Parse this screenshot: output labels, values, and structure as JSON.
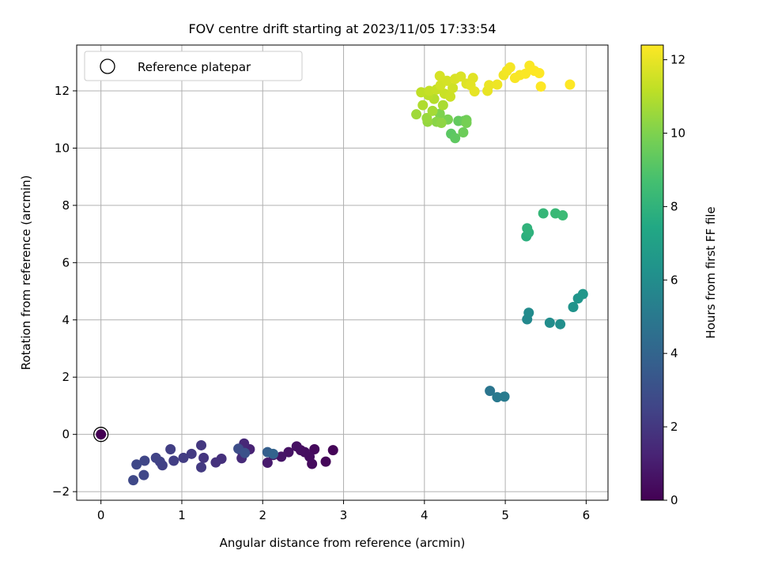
{
  "chart_data": {
    "type": "scatter",
    "title": "FOV centre drift starting at 2023/11/05 17:33:54",
    "xlabel": "Angular distance from reference (arcmin)",
    "ylabel": "Rotation from reference (arcmin)",
    "xlim": [
      -0.3,
      6.27
    ],
    "ylim": [
      -2.3,
      13.6
    ],
    "xticks": [
      0,
      1,
      2,
      3,
      4,
      5,
      6
    ],
    "yticks": [
      -2,
      0,
      2,
      4,
      6,
      8,
      10,
      12
    ],
    "grid": true,
    "legend": {
      "placement": "top-left",
      "entries": [
        "Reference platepar"
      ]
    },
    "colorbar": {
      "label": "Hours from first FF file",
      "range": [
        0,
        12.4
      ],
      "ticks": [
        0,
        2,
        4,
        6,
        8,
        10,
        12
      ],
      "colormap": "viridis"
    },
    "reference_point": {
      "x": 0,
      "y": 0,
      "c": 0
    },
    "points": [
      {
        "x": 2.87,
        "y": -0.55,
        "c": 0.1
      },
      {
        "x": 2.78,
        "y": -0.95,
        "c": 0.2
      },
      {
        "x": 2.64,
        "y": -0.52,
        "c": 0.3
      },
      {
        "x": 2.61,
        "y": -1.03,
        "c": 0.35
      },
      {
        "x": 2.58,
        "y": -0.78,
        "c": 0.4
      },
      {
        "x": 2.52,
        "y": -0.62,
        "c": 0.45
      },
      {
        "x": 2.47,
        "y": -0.55,
        "c": 0.5
      },
      {
        "x": 2.42,
        "y": -0.42,
        "c": 0.55
      },
      {
        "x": 2.32,
        "y": -0.62,
        "c": 0.6
      },
      {
        "x": 2.23,
        "y": -0.78,
        "c": 0.7
      },
      {
        "x": 2.13,
        "y": -0.72,
        "c": 0.8
      },
      {
        "x": 2.06,
        "y": -0.99,
        "c": 0.9
      },
      {
        "x": 1.84,
        "y": -0.52,
        "c": 1.2
      },
      {
        "x": 1.77,
        "y": -0.32,
        "c": 1.4
      },
      {
        "x": 1.74,
        "y": -0.83,
        "c": 1.5
      },
      {
        "x": 1.73,
        "y": -0.55,
        "c": 1.6
      },
      {
        "x": 1.49,
        "y": -0.85,
        "c": 1.7
      },
      {
        "x": 1.42,
        "y": -0.98,
        "c": 1.8
      },
      {
        "x": 1.27,
        "y": -0.82,
        "c": 1.9
      },
      {
        "x": 1.24,
        "y": -0.38,
        "c": 2.0
      },
      {
        "x": 1.24,
        "y": -1.15,
        "c": 2.1
      },
      {
        "x": 1.12,
        "y": -0.68,
        "c": 2.15
      },
      {
        "x": 1.02,
        "y": -0.82,
        "c": 2.2
      },
      {
        "x": 0.9,
        "y": -0.92,
        "c": 2.25
      },
      {
        "x": 0.86,
        "y": -0.52,
        "c": 2.3
      },
      {
        "x": 0.76,
        "y": -1.08,
        "c": 2.35
      },
      {
        "x": 0.73,
        "y": -0.95,
        "c": 2.4
      },
      {
        "x": 0.68,
        "y": -0.82,
        "c": 2.5
      },
      {
        "x": 0.54,
        "y": -0.92,
        "c": 2.55
      },
      {
        "x": 0.53,
        "y": -1.42,
        "c": 2.6
      },
      {
        "x": 0.44,
        "y": -1.05,
        "c": 2.65
      },
      {
        "x": 0.4,
        "y": -1.6,
        "c": 2.7
      },
      {
        "x": 1.7,
        "y": -0.5,
        "c": 2.9
      },
      {
        "x": 1.78,
        "y": -0.65,
        "c": 3.1
      },
      {
        "x": 2.06,
        "y": -0.62,
        "c": 3.7
      },
      {
        "x": 2.13,
        "y": -0.68,
        "c": 3.9
      },
      {
        "x": 4.81,
        "y": 1.52,
        "c": 4.8
      },
      {
        "x": 4.9,
        "y": 1.3,
        "c": 5.0
      },
      {
        "x": 4.99,
        "y": 1.32,
        "c": 5.1
      },
      {
        "x": 5.27,
        "y": 4.02,
        "c": 5.8
      },
      {
        "x": 5.29,
        "y": 4.25,
        "c": 5.9
      },
      {
        "x": 5.55,
        "y": 3.9,
        "c": 6.0
      },
      {
        "x": 5.68,
        "y": 3.85,
        "c": 6.1
      },
      {
        "x": 5.84,
        "y": 4.45,
        "c": 6.3
      },
      {
        "x": 5.9,
        "y": 4.75,
        "c": 6.4
      },
      {
        "x": 5.96,
        "y": 4.9,
        "c": 6.5
      },
      {
        "x": 5.26,
        "y": 6.92,
        "c": 7.8
      },
      {
        "x": 5.29,
        "y": 7.05,
        "c": 7.9
      },
      {
        "x": 5.27,
        "y": 7.2,
        "c": 8.0
      },
      {
        "x": 5.47,
        "y": 7.72,
        "c": 8.2
      },
      {
        "x": 5.62,
        "y": 7.72,
        "c": 8.3
      },
      {
        "x": 5.71,
        "y": 7.65,
        "c": 8.4
      },
      {
        "x": 4.33,
        "y": 10.5,
        "c": 9.2
      },
      {
        "x": 4.38,
        "y": 10.35,
        "c": 9.3
      },
      {
        "x": 4.42,
        "y": 10.95,
        "c": 9.4
      },
      {
        "x": 4.49,
        "y": 10.95,
        "c": 9.5
      },
      {
        "x": 4.48,
        "y": 10.55,
        "c": 9.6
      },
      {
        "x": 4.52,
        "y": 10.98,
        "c": 9.7
      },
      {
        "x": 4.52,
        "y": 10.88,
        "c": 9.8
      },
      {
        "x": 4.29,
        "y": 11.0,
        "c": 9.9
      },
      {
        "x": 4.19,
        "y": 11.2,
        "c": 10.0
      },
      {
        "x": 4.15,
        "y": 10.92,
        "c": 10.2
      },
      {
        "x": 4.21,
        "y": 10.88,
        "c": 10.3
      },
      {
        "x": 4.04,
        "y": 10.92,
        "c": 10.4
      },
      {
        "x": 4.03,
        "y": 11.05,
        "c": 10.5
      },
      {
        "x": 3.9,
        "y": 11.18,
        "c": 10.6
      },
      {
        "x": 4.1,
        "y": 11.3,
        "c": 10.7
      },
      {
        "x": 4.23,
        "y": 11.5,
        "c": 10.8
      },
      {
        "x": 3.98,
        "y": 11.5,
        "c": 10.9
      },
      {
        "x": 4.12,
        "y": 11.72,
        "c": 11.0
      },
      {
        "x": 4.05,
        "y": 11.85,
        "c": 11.1
      },
      {
        "x": 3.96,
        "y": 11.95,
        "c": 11.2
      },
      {
        "x": 4.06,
        "y": 12.0,
        "c": 11.3
      },
      {
        "x": 4.15,
        "y": 12.05,
        "c": 11.35
      },
      {
        "x": 4.25,
        "y": 11.9,
        "c": 11.4
      },
      {
        "x": 4.32,
        "y": 11.8,
        "c": 11.45
      },
      {
        "x": 4.35,
        "y": 12.1,
        "c": 11.5
      },
      {
        "x": 4.2,
        "y": 12.2,
        "c": 11.55
      },
      {
        "x": 4.28,
        "y": 12.35,
        "c": 11.6
      },
      {
        "x": 4.19,
        "y": 12.52,
        "c": 11.65
      },
      {
        "x": 4.38,
        "y": 12.42,
        "c": 11.7
      },
      {
        "x": 4.45,
        "y": 12.5,
        "c": 11.75
      },
      {
        "x": 4.52,
        "y": 12.25,
        "c": 11.8
      },
      {
        "x": 4.6,
        "y": 12.45,
        "c": 11.85
      },
      {
        "x": 4.57,
        "y": 12.2,
        "c": 11.9
      },
      {
        "x": 4.62,
        "y": 11.98,
        "c": 11.95
      },
      {
        "x": 4.78,
        "y": 12.0,
        "c": 12.0
      },
      {
        "x": 4.8,
        "y": 12.2,
        "c": 12.05
      },
      {
        "x": 4.9,
        "y": 12.22,
        "c": 12.1
      },
      {
        "x": 4.98,
        "y": 12.55,
        "c": 12.15
      },
      {
        "x": 5.02,
        "y": 12.7,
        "c": 12.2
      },
      {
        "x": 5.06,
        "y": 12.82,
        "c": 12.25
      },
      {
        "x": 5.12,
        "y": 12.45,
        "c": 12.3
      },
      {
        "x": 5.18,
        "y": 12.55,
        "c": 12.3
      },
      {
        "x": 5.25,
        "y": 12.6,
        "c": 12.35
      },
      {
        "x": 5.3,
        "y": 12.88,
        "c": 12.35
      },
      {
        "x": 5.36,
        "y": 12.7,
        "c": 12.4
      },
      {
        "x": 5.42,
        "y": 12.62,
        "c": 12.4
      },
      {
        "x": 5.44,
        "y": 12.15,
        "c": 12.4
      },
      {
        "x": 5.8,
        "y": 12.22,
        "c": 12.4
      }
    ]
  }
}
